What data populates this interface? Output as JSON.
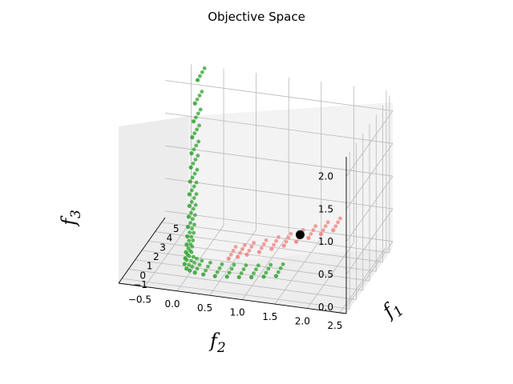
{
  "chart_data": {
    "type": "scatter",
    "title": "Objective Space",
    "xlabel": "f",
    "xlabel_sub": "1",
    "ylabel": "f",
    "ylabel_sub": "2",
    "zlabel": "f",
    "zlabel_sub": "3",
    "f1_ticks": [
      "−1",
      "0",
      "1",
      "2",
      "3",
      "4",
      "5"
    ],
    "f2_ticks": [
      "2.5",
      "2.0",
      "1.5",
      "1.0",
      "0.5",
      "0.0",
      "−0.5"
    ],
    "f3_ticks": [
      "0.0",
      "0.5",
      "1.0",
      "1.5",
      "2.0"
    ],
    "f1_range": [
      -1.5,
      5.5
    ],
    "f2_range": [
      -0.9,
      2.6
    ],
    "f3_range": [
      -0.1,
      2.3
    ],
    "grid": true,
    "series": [
      {
        "color": "#2ca02c",
        "points": [
          [
            5.0,
            -0.35,
            2.15
          ],
          [
            4.6,
            -0.35,
            1.85
          ],
          [
            4.3,
            -0.34,
            1.62
          ],
          [
            4.0,
            -0.33,
            1.42
          ],
          [
            3.7,
            -0.31,
            1.22
          ],
          [
            3.4,
            -0.29,
            1.05
          ],
          [
            3.1,
            -0.27,
            0.88
          ],
          [
            2.8,
            -0.25,
            0.73
          ],
          [
            2.5,
            -0.22,
            0.6
          ],
          [
            2.2,
            -0.2,
            0.48
          ],
          [
            1.9,
            -0.18,
            0.37
          ],
          [
            1.6,
            -0.16,
            0.27
          ],
          [
            1.3,
            -0.14,
            0.19
          ],
          [
            1.0,
            -0.12,
            0.12
          ],
          [
            0.7,
            -0.1,
            0.07
          ],
          [
            0.4,
            -0.08,
            0.03
          ],
          [
            0.1,
            -0.02,
            0.01
          ],
          [
            -0.1,
            0.05,
            0.02
          ],
          [
            -0.3,
            0.15,
            0.03
          ],
          [
            -0.5,
            0.3,
            0.05
          ],
          [
            -0.7,
            0.5,
            0.08
          ],
          [
            -0.85,
            0.7,
            0.12
          ],
          [
            -1.0,
            0.9,
            0.16
          ],
          [
            -1.1,
            1.1,
            0.2
          ],
          [
            -1.2,
            1.3,
            0.25
          ],
          [
            -1.3,
            1.5,
            0.3
          ]
        ]
      },
      {
        "color": "#f08080",
        "points": [
          [
            -1.5,
            2.4,
            1.15
          ],
          [
            -1.4,
            2.2,
            1.05
          ],
          [
            -1.3,
            2.0,
            0.95
          ],
          [
            -1.2,
            1.8,
            0.85
          ],
          [
            -1.1,
            1.6,
            0.75
          ],
          [
            -1.0,
            1.4,
            0.66
          ],
          [
            -0.9,
            1.2,
            0.57
          ],
          [
            -0.8,
            1.0,
            0.49
          ],
          [
            -0.7,
            0.85,
            0.42
          ],
          [
            -0.6,
            0.7,
            0.36
          ]
        ]
      }
    ],
    "highlight": {
      "f1": -1.1,
      "f2": 1.85,
      "f3": 0.95,
      "color": "#000000"
    }
  }
}
